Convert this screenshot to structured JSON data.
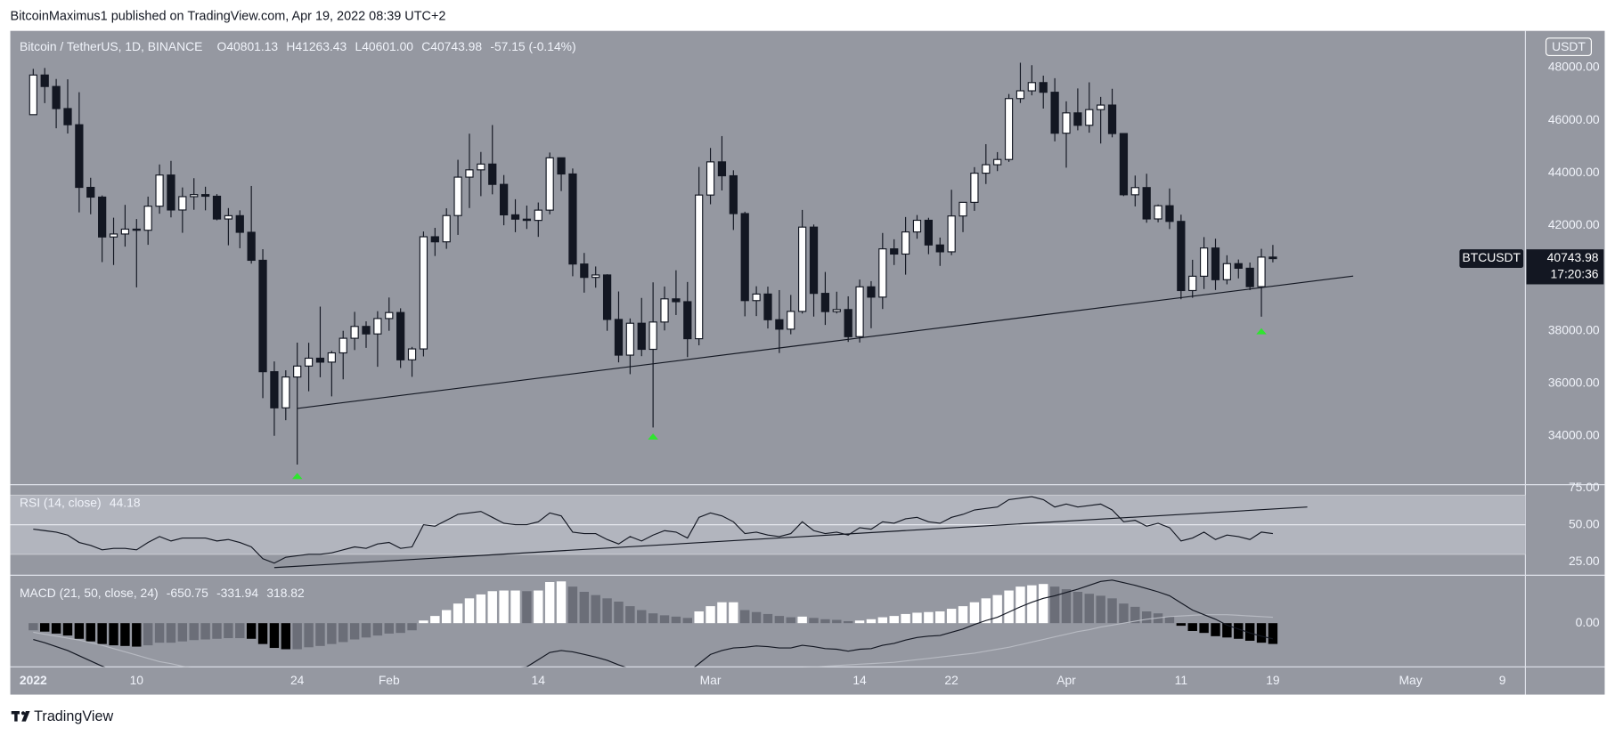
{
  "header": {
    "publisher": "BitcoinMaximus1 published on TradingView.com, Apr 19, 2022 08:39 UTC+2"
  },
  "footer": {
    "brand": "TradingView"
  },
  "chart_data": [
    {
      "type": "candlestick",
      "legend": {
        "symbol": "Bitcoin / TetherUS, 1D, BINANCE",
        "ohlc": [
          {
            "key": "O",
            "value": "40801.13"
          },
          {
            "key": "H",
            "value": "41263.43"
          },
          {
            "key": "L",
            "value": "40601.00"
          },
          {
            "key": "C",
            "value": "40743.98"
          }
        ],
        "change": "-57.15 (-0.14%)"
      },
      "currency": "USDT",
      "price_tag": {
        "symbol": "BTCUSDT",
        "last_price": 40743.98,
        "countdown": "17:20:36"
      },
      "x": [
        "2022-01-01",
        "2022-01-02",
        "2022-01-03",
        "2022-01-04",
        "2022-01-05",
        "2022-01-06",
        "2022-01-07",
        "2022-01-08",
        "2022-01-09",
        "2022-01-10",
        "2022-01-11",
        "2022-01-12",
        "2022-01-13",
        "2022-01-14",
        "2022-01-15",
        "2022-01-16",
        "2022-01-17",
        "2022-01-18",
        "2022-01-19",
        "2022-01-20",
        "2022-01-21",
        "2022-01-22",
        "2022-01-23",
        "2022-01-24",
        "2022-01-25",
        "2022-01-26",
        "2022-01-27",
        "2022-01-28",
        "2022-01-29",
        "2022-01-30",
        "2022-01-31",
        "2022-02-01",
        "2022-02-02",
        "2022-02-03",
        "2022-02-04",
        "2022-02-05",
        "2022-02-06",
        "2022-02-07",
        "2022-02-08",
        "2022-02-09",
        "2022-02-10",
        "2022-02-11",
        "2022-02-12",
        "2022-02-13",
        "2022-02-14",
        "2022-02-15",
        "2022-02-16",
        "2022-02-17",
        "2022-02-18",
        "2022-02-19",
        "2022-02-20",
        "2022-02-21",
        "2022-02-22",
        "2022-02-23",
        "2022-02-24",
        "2022-02-25",
        "2022-02-26",
        "2022-02-27",
        "2022-02-28",
        "2022-03-01",
        "2022-03-02",
        "2022-03-03",
        "2022-03-04",
        "2022-03-05",
        "2022-03-06",
        "2022-03-07",
        "2022-03-08",
        "2022-03-09",
        "2022-03-10",
        "2022-03-11",
        "2022-03-12",
        "2022-03-13",
        "2022-03-14",
        "2022-03-15",
        "2022-03-16",
        "2022-03-17",
        "2022-03-18",
        "2022-03-19",
        "2022-03-20",
        "2022-03-21",
        "2022-03-22",
        "2022-03-23",
        "2022-03-24",
        "2022-03-25",
        "2022-03-26",
        "2022-03-27",
        "2022-03-28",
        "2022-03-29",
        "2022-03-30",
        "2022-03-31",
        "2022-04-01",
        "2022-04-02",
        "2022-04-03",
        "2022-04-04",
        "2022-04-05",
        "2022-04-06",
        "2022-04-07",
        "2022-04-08",
        "2022-04-09",
        "2022-04-10",
        "2022-04-11",
        "2022-04-12",
        "2022-04-13",
        "2022-04-14",
        "2022-04-15",
        "2022-04-16",
        "2022-04-17",
        "2022-04-18",
        "2022-04-19"
      ],
      "open": [
        46216,
        47722,
        47286,
        46446,
        45832,
        43451,
        43082,
        41566,
        41679,
        41864,
        41822,
        42736,
        43920,
        42592,
        43099,
        43177,
        43114,
        42250,
        42375,
        41744,
        40680,
        36445,
        35071,
        36244,
        36660,
        36958,
        36809,
        37160,
        37716,
        38166,
        37881,
        38466,
        38694,
        36896,
        37311,
        41574,
        41382,
        42380,
        43840,
        44118,
        44338,
        43565,
        42407,
        42244,
        42197,
        42586,
        44575,
        43961,
        40538,
        40030,
        40122,
        38431,
        37075,
        38287,
        37296,
        38333,
        39214,
        39106,
        37699,
        43160,
        44421,
        43892,
        42454,
        39148,
        39397,
        38420,
        38062,
        38737,
        41941,
        39422,
        38730,
        38807,
        37777,
        39671,
        39280,
        41114,
        40917,
        41757,
        42201,
        41262,
        41002,
        42364,
        42882,
        43991,
        44313,
        44511,
        46827,
        47122,
        47434,
        47067,
        45510,
        46283,
        45811,
        46407,
        46580,
        45497,
        43170,
        43444,
        42252,
        42753,
        42158,
        39530,
        40074,
        41147,
        39942,
        40552,
        40378,
        39678,
        40801.13
      ],
      "high": [
        47954,
        47990,
        47570,
        47557,
        47070,
        43816,
        43145,
        42300,
        42786,
        42248,
        43100,
        44322,
        44459,
        43448,
        43800,
        43476,
        43195,
        42664,
        42578,
        43505,
        41100,
        36835,
        36499,
        37550,
        37545,
        38919,
        37234,
        38000,
        38720,
        38359,
        38744,
        39265,
        38855,
        37387,
        41772,
        41913,
        42656,
        44500,
        45492,
        44798,
        45821,
        43920,
        43000,
        42760,
        42876,
        44775,
        44583,
        44169,
        40959,
        40444,
        40150,
        39494,
        38470,
        39249,
        39843,
        39683,
        40300,
        39855,
        44225,
        44949,
        45400,
        44101,
        42527,
        39693,
        39679,
        39547,
        39362,
        42594,
        42039,
        40236,
        39486,
        39310,
        39947,
        39887,
        41718,
        41478,
        42325,
        42400,
        42296,
        41544,
        43361,
        42893,
        44220,
        45094,
        44792,
        46999,
        48190,
        48097,
        47700,
        47600,
        46720,
        47213,
        47444,
        46890,
        47200,
        45507,
        43900,
        43970,
        42800,
        43410,
        42414,
        40699,
        41561,
        41500,
        40870,
        40709,
        40595,
        41116,
        41263.43
      ],
      "low": [
        46208,
        46654,
        45696,
        45500,
        42500,
        42430,
        40610,
        40501,
        41200,
        39650,
        41268,
        42450,
        42311,
        41725,
        42600,
        42578,
        42200,
        41250,
        41138,
        40553,
        35440,
        34008,
        34601,
        32917,
        35701,
        36234,
        35507,
        36155,
        37268,
        37351,
        36632,
        38000,
        36586,
        36250,
        37026,
        40843,
        41116,
        41645,
        42666,
        43117,
        43187,
        42011,
        41748,
        41870,
        41570,
        42428,
        43310,
        40073,
        39450,
        39639,
        38000,
        36800,
        36351,
        37036,
        34322,
        38014,
        38600,
        37000,
        37450,
        42809,
        43334,
        41832,
        38550,
        38560,
        38088,
        37155,
        37867,
        38656,
        38540,
        38223,
        38660,
        37578,
        37555,
        38098,
        38828,
        40500,
        40135,
        41499,
        40911,
        40467,
        40875,
        41751,
        42560,
        43579,
        44071,
        44422,
        46660,
        46950,
        46445,
        45200,
        44200,
        45620,
        45530,
        45118,
        45353,
        43121,
        42727,
        42107,
        42125,
        41868,
        39200,
        39254,
        39588,
        39551,
        39766,
        39991,
        39546,
        38536,
        40601
      ],
      "close": [
        47722,
        47286,
        46446,
        45832,
        43451,
        43082,
        41566,
        41679,
        41864,
        41822,
        42736,
        43920,
        42592,
        43099,
        43177,
        43114,
        42250,
        42375,
        41744,
        40680,
        36445,
        35071,
        36244,
        36660,
        36958,
        36809,
        37160,
        37716,
        38166,
        37881,
        38466,
        38694,
        36896,
        37311,
        41574,
        41382,
        42380,
        43840,
        44118,
        44338,
        43565,
        42407,
        42244,
        42197,
        42586,
        44575,
        43961,
        40538,
        40030,
        40122,
        38431,
        37075,
        38287,
        37296,
        38333,
        39214,
        39106,
        37699,
        43160,
        44421,
        43892,
        42454,
        39148,
        39397,
        38420,
        38062,
        38737,
        41941,
        39422,
        38730,
        38807,
        37777,
        39671,
        39280,
        41114,
        40917,
        41757,
        42201,
        41262,
        41002,
        42364,
        42882,
        43991,
        44313,
        44511,
        46827,
        47122,
        47434,
        47067,
        45510,
        46283,
        45811,
        46407,
        46580,
        45497,
        43170,
        43444,
        42252,
        42753,
        42158,
        39530,
        40074,
        41147,
        39942,
        40552,
        40378,
        39678,
        40801.13,
        40743.98
      ],
      "up_color": "#ffffff",
      "down_color": "#131722",
      "wick_color": "#131722",
      "xlim": [
        "2021-12-30",
        "2022-05-11"
      ],
      "xticks": [
        {
          "value": "2022-01-01",
          "label": "2022"
        },
        {
          "value": "2022-01-10",
          "label": "10"
        },
        {
          "value": "2022-01-24",
          "label": "24"
        },
        {
          "value": "2022-02-01",
          "label": "Feb"
        },
        {
          "value": "2022-02-14",
          "label": "14"
        },
        {
          "value": "2022-03-01",
          "label": "Mar"
        },
        {
          "value": "2022-03-14",
          "label": "14"
        },
        {
          "value": "2022-03-22",
          "label": "22"
        },
        {
          "value": "2022-04-01",
          "label": "Apr"
        },
        {
          "value": "2022-04-11",
          "label": "11"
        },
        {
          "value": "2022-04-19",
          "label": "19"
        },
        {
          "value": "2022-05-01",
          "label": "May"
        },
        {
          "value": "2022-05-09",
          "label": "9"
        }
      ],
      "ylim": [
        32150,
        49400
      ],
      "yticks": [
        {
          "value": 34000,
          "label": "34000.00"
        },
        {
          "value": 36000,
          "label": "36000.00"
        },
        {
          "value": 38000,
          "label": "38000.00"
        },
        {
          "value": 40000,
          "label": "40000.00"
        },
        {
          "value": 42000,
          "label": "42000.00"
        },
        {
          "value": 44000,
          "label": "44000.00"
        },
        {
          "value": 46000,
          "label": "46000.00"
        },
        {
          "value": 48000,
          "label": "48000.00"
        }
      ],
      "trendline": {
        "color": "#131722",
        "points": [
          {
            "x": "2022-01-24",
            "y": 35050
          },
          {
            "x": "2022-04-26",
            "y": 40080
          }
        ]
      },
      "markers": {
        "color": "#2ee52e",
        "points": [
          {
            "x": "2022-01-24",
            "y": 32600
          },
          {
            "x": "2022-02-24",
            "y": 34100
          },
          {
            "x": "2022-04-18",
            "y": 38100
          }
        ]
      },
      "background": "#9598a1"
    },
    {
      "type": "line",
      "legend": {
        "name": "RSI (14, close)",
        "value": "44.18"
      },
      "values": [
        47,
        46,
        45,
        43,
        38,
        36,
        33,
        34,
        34,
        33,
        38,
        42,
        39,
        41,
        41,
        41,
        39,
        40,
        38,
        35,
        27,
        24,
        28,
        29,
        30,
        30,
        31,
        33,
        35,
        34,
        37,
        38,
        34,
        35,
        50,
        49,
        53,
        57,
        58,
        59,
        55,
        51,
        50,
        50,
        52,
        58,
        56,
        45,
        44,
        44,
        40,
        37,
        42,
        39,
        43,
        46,
        45,
        41,
        55,
        58,
        56,
        52,
        44,
        45,
        43,
        42,
        44,
        52,
        46,
        44,
        45,
        43,
        48,
        47,
        52,
        51,
        54,
        55,
        52,
        51,
        55,
        57,
        60,
        61,
        62,
        67,
        68,
        69,
        67,
        62,
        64,
        62,
        63,
        64,
        60,
        52,
        53,
        49,
        51,
        48,
        39,
        41,
        45,
        40,
        43,
        42,
        40,
        45,
        44
      ],
      "color": "#131722",
      "ylim": [
        15.8,
        77.1
      ],
      "yticks": [
        {
          "value": 25,
          "label": "25.00"
        },
        {
          "value": 50,
          "label": "50.00"
        },
        {
          "value": 75,
          "label": "75.00"
        }
      ],
      "band": [
        30,
        70
      ],
      "band_color": "#b2b5be",
      "midline": 50,
      "trendline": {
        "color": "#131722",
        "points": [
          {
            "x": "2022-01-22",
            "y": 21
          },
          {
            "x": "2022-04-22",
            "y": 62
          }
        ]
      }
    },
    {
      "type": "macd",
      "legend": {
        "name": "MACD (21, 50, close, 24)",
        "values": [
          "-650.75",
          "-331.94",
          "318.82"
        ]
      },
      "histogram": [
        -110,
        -130,
        -160,
        -190,
        -240,
        -280,
        -320,
        -340,
        -350,
        -360,
        -340,
        -300,
        -300,
        -280,
        -260,
        -250,
        -240,
        -230,
        -230,
        -240,
        -320,
        -380,
        -400,
        -400,
        -370,
        -350,
        -320,
        -290,
        -250,
        -220,
        -190,
        -160,
        -150,
        -110,
        40,
        110,
        200,
        300,
        380,
        440,
        490,
        500,
        500,
        490,
        500,
        630,
        640,
        560,
        480,
        430,
        380,
        330,
        260,
        200,
        150,
        120,
        100,
        80,
        180,
        260,
        320,
        320,
        200,
        170,
        140,
        110,
        90,
        100,
        80,
        60,
        50,
        30,
        40,
        60,
        90,
        110,
        140,
        160,
        170,
        180,
        220,
        260,
        320,
        380,
        430,
        500,
        560,
        580,
        600,
        560,
        520,
        480,
        450,
        420,
        380,
        300,
        250,
        180,
        150,
        100,
        -40,
        -120,
        -150,
        -200,
        -220,
        -240,
        -270,
        -300,
        -319
      ],
      "macd": [
        -250,
        -300,
        -360,
        -420,
        -500,
        -580,
        -660,
        -730,
        -790,
        -850,
        -880,
        -890,
        -920,
        -940,
        -950,
        -960,
        -970,
        -980,
        -1000,
        -1030,
        -1140,
        -1240,
        -1310,
        -1360,
        -1380,
        -1400,
        -1400,
        -1390,
        -1370,
        -1350,
        -1330,
        -1310,
        -1300,
        -1280,
        -1150,
        -1050,
        -960,
        -880,
        -820,
        -770,
        -730,
        -700,
        -690,
        -670,
        -560,
        -450,
        -420,
        -440,
        -480,
        -520,
        -570,
        -640,
        -700,
        -750,
        -770,
        -760,
        -750,
        -760,
        -620,
        -480,
        -420,
        -380,
        -370,
        -350,
        -360,
        -380,
        -380,
        -340,
        -360,
        -390,
        -400,
        -430,
        -400,
        -390,
        -340,
        -310,
        -260,
        -220,
        -200,
        -190,
        -140,
        -90,
        -20,
        40,
        90,
        170,
        250,
        320,
        380,
        420,
        470,
        520,
        580,
        640,
        660,
        620,
        580,
        530,
        480,
        420,
        310,
        200,
        130,
        60,
        -30,
        -90,
        -150,
        -200,
        -240
      ],
      "signal": [
        -140,
        -170,
        -200,
        -230,
        -260,
        -300,
        -340,
        -390,
        -440,
        -490,
        -540,
        -590,
        -620,
        -660,
        -690,
        -710,
        -730,
        -750,
        -770,
        -790,
        -820,
        -860,
        -910,
        -960,
        -1010,
        -1050,
        -1080,
        -1100,
        -1120,
        -1130,
        -1140,
        -1150,
        -1150,
        -1160,
        -1140,
        -1120,
        -1100,
        -1060,
        -1040,
        -1010,
        -990,
        -970,
        -950,
        -920,
        -900,
        -880,
        -860,
        -840,
        -830,
        -820,
        -810,
        -800,
        -800,
        -790,
        -790,
        -780,
        -780,
        -780,
        -770,
        -760,
        -750,
        -740,
        -730,
        -720,
        -710,
        -700,
        -690,
        -680,
        -670,
        -660,
        -650,
        -640,
        -630,
        -620,
        -610,
        -600,
        -580,
        -560,
        -540,
        -520,
        -500,
        -480,
        -460,
        -430,
        -400,
        -370,
        -330,
        -290,
        -250,
        -210,
        -170,
        -130,
        -100,
        -60,
        -30,
        0,
        30,
        60,
        80,
        100,
        110,
        120,
        130,
        130,
        130,
        120,
        110,
        100,
        90
      ],
      "macd_color": "#131722",
      "signal_color": "#b7bac2",
      "hist_colors": {
        "rising_above": "#ffffff",
        "falling_above": "#6b6e78",
        "falling_below": "#000000",
        "rising_below": "#6b6e78"
      },
      "ylim": [
        -670,
        734
      ],
      "yticks": [
        {
          "value": 0,
          "label": "0.00"
        }
      ]
    }
  ]
}
